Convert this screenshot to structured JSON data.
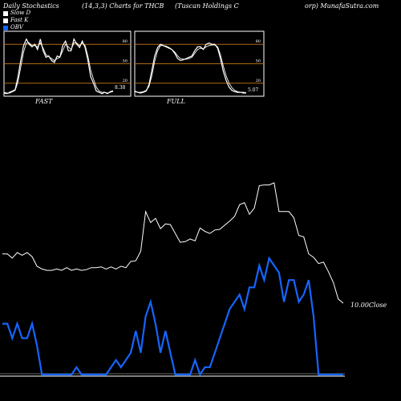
{
  "header": {
    "left": "Daily Stochastics",
    "center": "(14,3,3) Charts for THCB",
    "company": "(Tuscan Holdings C",
    "right": "orp) MunafaSutra.com"
  },
  "legend": [
    {
      "label": "Slow D",
      "color": "#ffffff"
    },
    {
      "label": "Fast K",
      "color": "#ffffff"
    },
    {
      "label": "OBV",
      "color": "#1565ff"
    }
  ],
  "colors": {
    "background": "#000000",
    "panel_frame": "#ffffff",
    "ref_line": "#b06a1a",
    "price": "#ffffff",
    "obv": "#1565ff"
  },
  "chart_data": [
    {
      "type": "line",
      "title": "FAST",
      "ylim": [
        0,
        100
      ],
      "ref_lines": [
        80,
        50,
        20
      ],
      "y_tick_labels": [
        "80",
        "50",
        "20"
      ],
      "last_value_label": "8.38",
      "x": [
        0,
        1,
        2,
        3,
        4,
        5,
        6,
        7,
        8,
        9,
        10,
        11,
        12,
        13,
        14,
        15,
        16,
        17,
        18,
        19,
        20,
        21,
        22,
        23,
        24,
        25,
        26,
        27,
        28,
        29,
        30,
        31,
        32,
        33,
        34,
        35,
        36,
        37,
        38,
        39
      ],
      "series": [
        {
          "values": [
            5,
            4,
            6,
            8,
            10,
            30,
            55,
            78,
            88,
            80,
            76,
            80,
            72,
            88,
            70,
            60,
            62,
            55,
            52,
            62,
            60,
            78,
            85,
            70,
            70,
            88,
            80,
            75,
            85,
            75,
            55,
            30,
            20,
            8,
            6,
            4,
            6,
            4,
            7,
            8.38
          ]
        },
        {
          "values": [
            6,
            5,
            5,
            7,
            9,
            22,
            45,
            68,
            82,
            82,
            78,
            78,
            76,
            82,
            74,
            64,
            61,
            58,
            55,
            58,
            60,
            70,
            80,
            76,
            72,
            82,
            82,
            78,
            82,
            78,
            62,
            40,
            26,
            14,
            8,
            6,
            6,
            5,
            6,
            7.5
          ]
        }
      ]
    },
    {
      "type": "line",
      "title": "FULL",
      "ylim": [
        0,
        100
      ],
      "ref_lines": [
        80,
        50,
        20
      ],
      "y_tick_labels": [
        "80",
        "50",
        "20"
      ],
      "last_value_label": "5.07",
      "x": [
        0,
        1,
        2,
        3,
        4,
        5,
        6,
        7,
        8,
        9,
        10,
        11,
        12,
        13,
        14,
        15,
        16,
        17,
        18,
        19,
        20,
        21,
        22,
        23,
        24,
        25,
        26,
        27,
        28,
        29,
        30,
        31,
        32,
        33,
        34,
        35,
        36,
        37,
        38,
        39
      ],
      "series": [
        {
          "values": [
            8,
            6,
            5,
            6,
            8,
            18,
            40,
            62,
            75,
            80,
            78,
            76,
            74,
            72,
            66,
            58,
            55,
            56,
            58,
            60,
            62,
            70,
            76,
            76,
            72,
            80,
            82,
            80,
            80,
            74,
            58,
            38,
            24,
            14,
            9,
            7,
            6,
            6,
            5,
            5.07
          ]
        },
        {
          "values": [
            7,
            6,
            6,
            7,
            9,
            15,
            32,
            54,
            70,
            78,
            78,
            77,
            75,
            72,
            68,
            62,
            58,
            57,
            57,
            58,
            60,
            66,
            72,
            74,
            73,
            76,
            78,
            79,
            79,
            76,
            64,
            46,
            31,
            20,
            13,
            9,
            7,
            6,
            6,
            5.5
          ]
        }
      ]
    },
    {
      "type": "line",
      "title": "",
      "x": [
        0,
        1,
        2,
        3,
        4,
        5,
        6,
        7,
        8,
        9,
        10,
        11,
        12,
        13,
        14,
        15,
        16,
        17,
        18,
        19,
        20,
        21,
        22,
        23,
        24,
        25,
        26,
        27,
        28,
        29,
        30,
        31,
        32,
        33,
        34,
        35,
        36,
        37,
        38,
        39,
        40,
        41,
        42,
        43,
        44,
        45,
        46,
        47,
        48,
        49,
        50,
        51,
        52,
        53,
        54,
        55,
        56,
        57,
        58,
        59,
        60,
        61,
        62,
        63,
        64,
        65,
        66,
        67,
        68,
        69
      ],
      "series": [
        {
          "name": "Close",
          "color": "#ffffff",
          "last_value_label": "10.00Close",
          "values": [
            10.72,
            10.72,
            10.66,
            10.74,
            10.7,
            10.74,
            10.68,
            10.54,
            10.5,
            10.48,
            10.48,
            10.5,
            10.48,
            10.52,
            10.48,
            10.5,
            10.48,
            10.49,
            10.52,
            10.52,
            10.53,
            10.5,
            10.53,
            10.5,
            10.54,
            10.52,
            10.61,
            10.62,
            10.76,
            11.34,
            11.18,
            11.24,
            11.09,
            11.16,
            11.15,
            11.02,
            10.89,
            10.9,
            10.94,
            10.91,
            11.1,
            11.05,
            11.02,
            11.07,
            11.08,
            11.14,
            11.2,
            11.27,
            11.44,
            11.47,
            11.3,
            11.39,
            11.72,
            11.73,
            11.73,
            11.76,
            11.34,
            11.34,
            11.34,
            11.25,
            10.99,
            10.97,
            10.72,
            10.67,
            10.58,
            10.6,
            10.46,
            10.3,
            10.06,
            10.0
          ]
        },
        {
          "name": "OBV",
          "color": "#1565ff",
          "values": [
            700,
            700,
            500,
            700,
            500,
            500,
            700,
            400,
            0,
            0,
            0,
            0,
            0,
            0,
            0,
            100,
            0,
            0,
            0,
            0,
            0,
            0,
            100,
            200,
            100,
            200,
            300,
            600,
            300,
            800,
            1000,
            700,
            300,
            600,
            300,
            0,
            0,
            0,
            0,
            200,
            0,
            100,
            100,
            300,
            500,
            700,
            900,
            1000,
            1100,
            900,
            1200,
            1200,
            1500,
            1300,
            1600,
            1500,
            1400,
            1000,
            1300,
            1300,
            1000,
            1100,
            1300,
            800,
            0,
            0,
            0,
            0,
            0,
            0
          ]
        }
      ]
    }
  ]
}
